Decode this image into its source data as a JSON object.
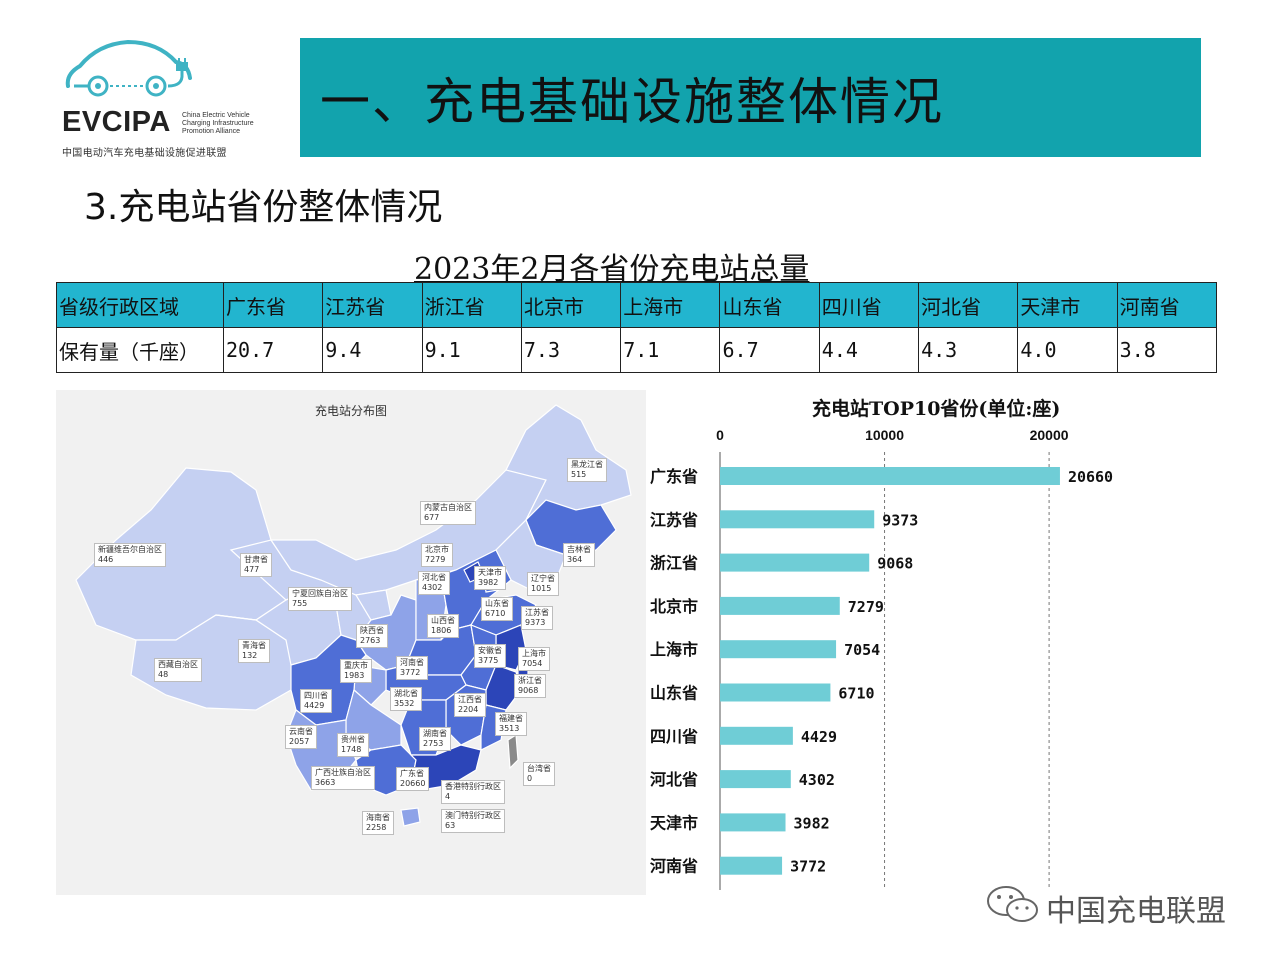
{
  "logo": {
    "wordmark": "EVCIPA",
    "english": [
      "China Electric Vehicle",
      "Charging Infrastructure",
      "Promotion Alliance"
    ],
    "chinese": "中国电动汽车充电基础设施促进联盟",
    "accent_color": "#3fb3c4"
  },
  "banner": {
    "title": "一、充电基础设施整体情况",
    "color": "#12a3ad"
  },
  "subtitle": "3.充电站省份整体情况",
  "table": {
    "title": "2023年2月各省份充电站总量",
    "header": [
      "省级行政区域",
      "广东省",
      "江苏省",
      "浙江省",
      "北京市",
      "上海市",
      "山东省",
      "四川省",
      "河北省",
      "天津市",
      "河南省"
    ],
    "row": [
      "保有量（千座）",
      "20.7",
      "9.4",
      "9.1",
      "7.3",
      "7.1",
      "6.7",
      "4.4",
      "4.3",
      "4.0",
      "3.8"
    ],
    "header_color": "#22b5cf"
  },
  "map": {
    "title": "充电站分布图",
    "labels": [
      {
        "name": "黑龙江省",
        "value": "515"
      },
      {
        "name": "内蒙古自治区",
        "value": "677"
      },
      {
        "name": "吉林省",
        "value": "364"
      },
      {
        "name": "新疆维吾尔自治区",
        "value": "446"
      },
      {
        "name": "甘肃省",
        "value": "477"
      },
      {
        "name": "北京市",
        "value": "7279"
      },
      {
        "name": "天津市",
        "value": "3982"
      },
      {
        "name": "辽宁省",
        "value": "1015"
      },
      {
        "name": "河北省",
        "value": "4302"
      },
      {
        "name": "宁夏回族自治区",
        "value": "755"
      },
      {
        "name": "山东省",
        "value": "6710"
      },
      {
        "name": "江苏省",
        "value": "9373"
      },
      {
        "name": "山西省",
        "value": "1806"
      },
      {
        "name": "陕西省",
        "value": "2763"
      },
      {
        "name": "青海省",
        "value": "132"
      },
      {
        "name": "安徽省",
        "value": "3775"
      },
      {
        "name": "上海市",
        "value": "7054"
      },
      {
        "name": "重庆市",
        "value": "1983"
      },
      {
        "name": "河南省",
        "value": "3772"
      },
      {
        "name": "西藏自治区",
        "value": "48"
      },
      {
        "name": "浙江省",
        "value": "9068"
      },
      {
        "name": "四川省",
        "value": "4429"
      },
      {
        "name": "湖北省",
        "value": "3532"
      },
      {
        "name": "江西省",
        "value": "2204"
      },
      {
        "name": "福建省",
        "value": "3513"
      },
      {
        "name": "云南省",
        "value": "2057"
      },
      {
        "name": "贵州省",
        "value": "1748"
      },
      {
        "name": "湖南省",
        "value": "2753"
      },
      {
        "name": "台湾省",
        "value": "0"
      },
      {
        "name": "广西壮族自治区",
        "value": "3663"
      },
      {
        "name": "广东省",
        "value": "20660"
      },
      {
        "name": "香港特别行政区",
        "value": "4"
      },
      {
        "name": "海南省",
        "value": "2258"
      },
      {
        "name": "澳门特别行政区",
        "value": "63"
      }
    ],
    "colors": {
      "low": "#c5d0f2",
      "mid": "#8ea3e8",
      "high": "#4f6ed6",
      "top": "#2c45b8",
      "taiwan": "#8a8a8a"
    }
  },
  "chart_data": {
    "type": "bar",
    "orientation": "horizontal",
    "title": "充电站TOP10省份(单位:座)",
    "categories": [
      "广东省",
      "江苏省",
      "浙江省",
      "北京市",
      "上海市",
      "山东省",
      "四川省",
      "河北省",
      "天津市",
      "河南省"
    ],
    "values": [
      20660,
      9373,
      9068,
      7279,
      7054,
      6710,
      4429,
      4302,
      3982,
      3772
    ],
    "xlim": [
      0,
      22000
    ],
    "xticks": [
      0,
      10000,
      20000
    ],
    "xtick_labels": [
      "0",
      "10000",
      "20000"
    ],
    "axis_position": "top",
    "grid": "dashed vertical",
    "bar_color": "#6fcdd6"
  },
  "watermark": {
    "text": "中国充电联盟",
    "icon": "wechat-icon"
  }
}
